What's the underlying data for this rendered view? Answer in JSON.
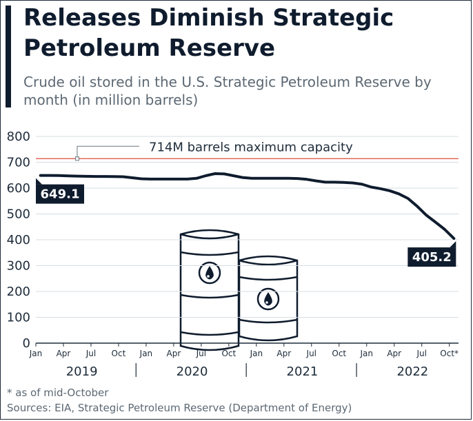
{
  "header": {
    "title": "Releases Diminish Strategic Petroleum Reserve",
    "subtitle": "Crude oil stored in the U.S. Strategic Petroleum Reserve by month (in million barrels)"
  },
  "footer": {
    "note": "* as of mid-October",
    "sources": "Sources: EIA, Strategic Petroleum Reserve (Department of Energy)"
  },
  "chart_data": {
    "type": "line",
    "title": "Releases Diminish Strategic Petroleum Reserve",
    "subtitle": "Crude oil stored in the U.S. Strategic Petroleum Reserve by month (in million barrels)",
    "xlabel": "",
    "ylabel": "",
    "ylim": [
      0,
      800
    ],
    "yticks": [
      "0",
      "100",
      "200",
      "300",
      "400",
      "500",
      "600",
      "700",
      "800"
    ],
    "xtick_labels": [
      "Jan",
      "Apr",
      "Jul",
      "Oct",
      "Jan",
      "Apr",
      "Jul",
      "Oct",
      "Jan",
      "Apr",
      "Jul",
      "Oct",
      "Jan",
      "Apr",
      "Jul",
      "Oct*"
    ],
    "years": [
      "2019",
      "2020",
      "2021",
      "2022"
    ],
    "x": [
      "2019-01",
      "2019-02",
      "2019-03",
      "2019-04",
      "2019-05",
      "2019-06",
      "2019-07",
      "2019-08",
      "2019-09",
      "2019-10",
      "2019-11",
      "2019-12",
      "2020-01",
      "2020-02",
      "2020-03",
      "2020-04",
      "2020-05",
      "2020-06",
      "2020-07",
      "2020-08",
      "2020-09",
      "2020-10",
      "2020-11",
      "2020-12",
      "2021-01",
      "2021-02",
      "2021-03",
      "2021-04",
      "2021-05",
      "2021-06",
      "2021-07",
      "2021-08",
      "2021-09",
      "2021-10",
      "2021-11",
      "2021-12",
      "2022-01",
      "2022-02",
      "2022-03",
      "2022-04",
      "2022-05",
      "2022-06",
      "2022-07",
      "2022-08",
      "2022-09",
      "2022-10"
    ],
    "values": [
      649.1,
      649,
      648.5,
      647.5,
      646.5,
      645.5,
      645,
      645,
      644.5,
      644,
      640,
      636,
      635,
      635,
      635,
      635,
      635,
      638,
      648,
      656,
      655,
      648,
      641,
      638,
      638,
      638,
      638,
      638,
      637,
      634,
      628,
      623,
      623,
      622,
      620,
      615,
      604,
      598,
      590,
      578,
      560,
      530,
      495,
      468,
      440,
      405.2
    ],
    "reference_line": {
      "value": 714,
      "label": "714M barrels maximum capacity"
    },
    "data_labels": [
      {
        "index": 0,
        "text": "649.1"
      },
      {
        "index": 45,
        "text": "405.2"
      }
    ],
    "grid": true,
    "legend": "none",
    "colors": {
      "line": "#0f1c2e",
      "reference": "#e06a5c",
      "grid": "#d6dde3",
      "axis_text": "#1d2b3a"
    },
    "decoration": "oil-barrel-icons"
  }
}
